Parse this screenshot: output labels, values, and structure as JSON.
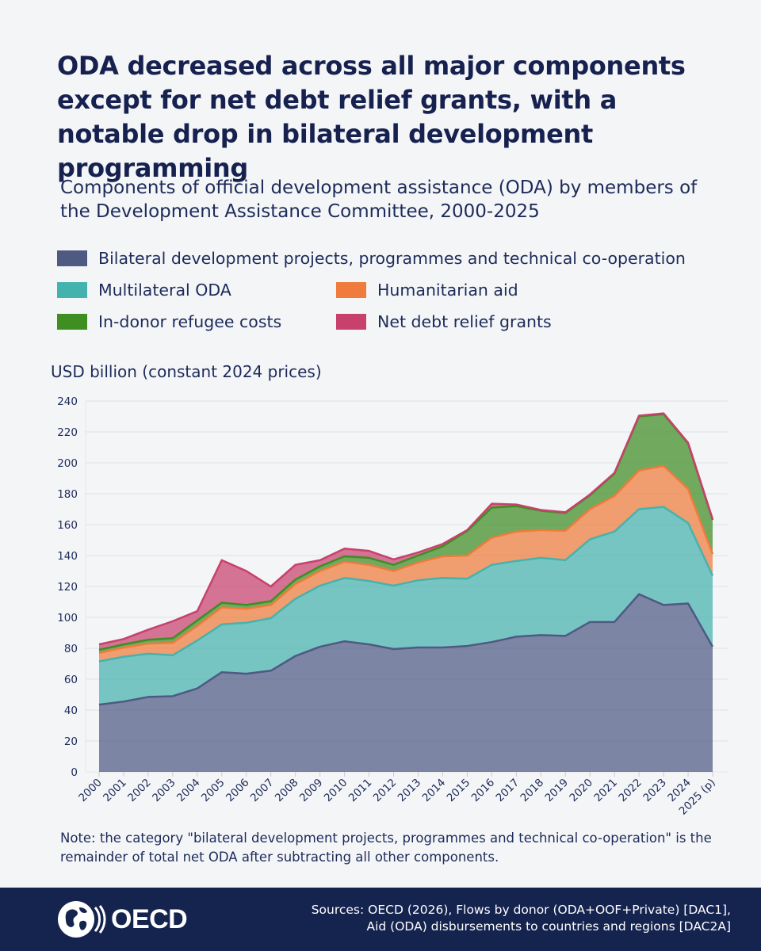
{
  "title": "ODA decreased across all major components except for net debt relief grants, with a notable drop in bilateral development programming",
  "subtitle": "Components of official development assistance (ODA) by members of the Development Assistance Committee, 2000-2025",
  "note": "Note: the category \"bilateral development projects, programmes and technical co-operation\" is the remainder of total net ODA after subtracting all other components.",
  "footer": {
    "logo_text": "OECD",
    "sources": [
      "Sources: OECD (2026), Flows by donor (ODA+OOF+Private) [DAC1],",
      "Aid (ODA) disbursements to countries and regions [DAC2A]"
    ]
  },
  "colors": {
    "background": "#f4f5f7",
    "footer": "#15234f",
    "bilateral": "#4e5a82",
    "multilateral": "#45b3ad",
    "humanitarian": "#ef7b3c",
    "refugee": "#3f8e22",
    "debt": "#c7416c"
  },
  "chart_data": {
    "type": "area",
    "stacked": true,
    "ylabel": "USD billion (constant 2024 prices)",
    "ylim": [
      0,
      240
    ],
    "yticks": [
      0,
      20,
      40,
      60,
      80,
      100,
      120,
      140,
      160,
      180,
      200,
      220,
      240
    ],
    "grid": true,
    "legend_position": "top",
    "x": [
      "2000",
      "2001",
      "2002",
      "2003",
      "2004",
      "2005",
      "2006",
      "2007",
      "2008",
      "2009",
      "2010",
      "2011",
      "2012",
      "2013",
      "2014",
      "2015",
      "2016",
      "2017",
      "2018",
      "2019",
      "2020",
      "2021",
      "2022",
      "2023",
      "2024",
      "2025 (p)"
    ],
    "series": [
      {
        "name": "Bilateral development projects, programmes and technical co-operation",
        "color": "#4e5a82",
        "values": [
          43.5,
          45.5,
          48.5,
          49,
          54,
          64.5,
          63.5,
          65.5,
          75,
          81,
          84.5,
          82.5,
          79.5,
          80.5,
          80.5,
          81.5,
          84,
          87.5,
          88.5,
          88,
          97,
          97,
          115,
          108,
          109,
          81
        ]
      },
      {
        "name": "Multilateral ODA",
        "color": "#45b3ad",
        "values": [
          28,
          29,
          28,
          26.5,
          31,
          31,
          33,
          34,
          37,
          39.5,
          41,
          41,
          41,
          43.5,
          45,
          43.5,
          50,
          49,
          50,
          49,
          53.5,
          58.5,
          55,
          63.5,
          52,
          46
        ]
      },
      {
        "name": "Humanitarian aid",
        "color": "#ef7b3c",
        "values": [
          5.5,
          6,
          6.5,
          8,
          9.5,
          11,
          9,
          8.5,
          9.5,
          9.5,
          10.5,
          10.5,
          9.5,
          11.5,
          14,
          15,
          17.5,
          19,
          18,
          19,
          19.5,
          23,
          25,
          26.5,
          22,
          14
        ]
      },
      {
        "name": "In-donor refugee costs",
        "color": "#3f8e22",
        "values": [
          2,
          2,
          2.5,
          3,
          3.5,
          3,
          2.5,
          2.5,
          3,
          3,
          3.5,
          4.5,
          4,
          4.5,
          6.5,
          16,
          19.5,
          16.5,
          12.5,
          11.5,
          9,
          14.5,
          35,
          33.5,
          29.5,
          22
        ]
      },
      {
        "name": "Net debt relief grants",
        "color": "#c7416c",
        "values": [
          3.5,
          3.5,
          6.5,
          11,
          6,
          27.5,
          22,
          9.5,
          9.5,
          4,
          5,
          4.5,
          3.5,
          2,
          1.5,
          0.5,
          2.5,
          1,
          0.5,
          0.5,
          0.5,
          0.5,
          0.5,
          0.5,
          0.5,
          0.5
        ]
      }
    ]
  }
}
